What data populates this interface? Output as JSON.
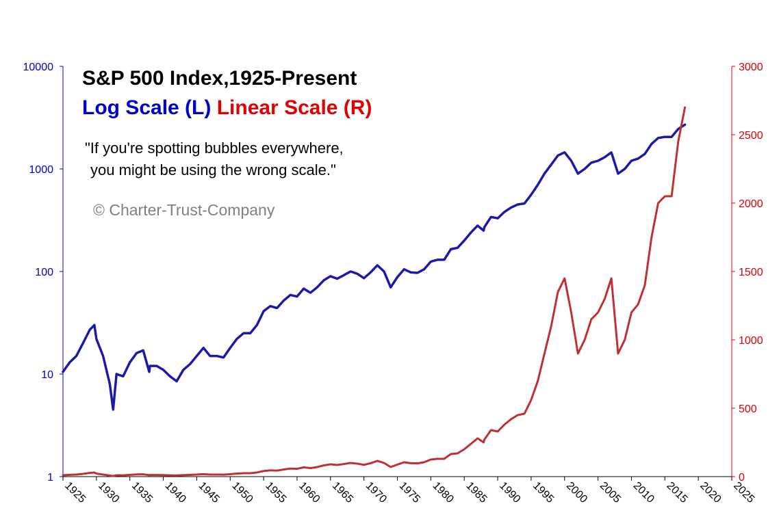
{
  "chart_data": {
    "type": "line",
    "title": "S&P 500 Index,1925-Present",
    "subtitle_left": "Log Scale (L)",
    "subtitle_right": "Linear Scale (R)",
    "quote_line1": "\"If you're spotting bubbles everywhere,",
    "quote_line2": "you might be using the wrong scale.\"",
    "credit": "© Charter-Trust-Company",
    "x_ticks": [
      "1925",
      "1930",
      "1935",
      "1940",
      "1945",
      "1950",
      "1955",
      "1960",
      "1965",
      "1970",
      "1975",
      "1980",
      "1985",
      "1990",
      "1995",
      "2000",
      "2005",
      "2010",
      "2015",
      "2020",
      "2025"
    ],
    "x_range": [
      1925,
      2025
    ],
    "y_left": {
      "scale": "log",
      "range": [
        1,
        10000
      ],
      "ticks": [
        "1",
        "10",
        "100",
        "1000",
        "10000"
      ],
      "color": "#0000cc"
    },
    "y_right": {
      "scale": "linear",
      "range": [
        0,
        3000
      ],
      "ticks": [
        "0",
        "500",
        "1000",
        "1500",
        "2000",
        "2500",
        "3000"
      ],
      "color": "#e00000"
    },
    "grid": false,
    "series": [
      {
        "name": "Log Scale (L)",
        "axis": "left",
        "color": "#1a1aaa",
        "x": [
          1925,
          1926,
          1927,
          1928,
          1929,
          1929.7,
          1930,
          1931,
          1932,
          1932.5,
          1933,
          1934,
          1935,
          1936,
          1937,
          1937.9,
          1938,
          1939,
          1940,
          1941,
          1942,
          1943,
          1944,
          1945,
          1946,
          1947,
          1948,
          1949,
          1950,
          1951,
          1952,
          1953,
          1954,
          1955,
          1956,
          1957,
          1958,
          1959,
          1960,
          1961,
          1962,
          1963,
          1964,
          1965,
          1966,
          1967,
          1968,
          1969,
          1970,
          1971,
          1972,
          1973,
          1974,
          1975,
          1976,
          1977,
          1978,
          1979,
          1980,
          1981,
          1982,
          1983,
          1984,
          1985,
          1986,
          1987,
          1987.9,
          1988,
          1989,
          1990,
          1991,
          1992,
          1993,
          1994,
          1995,
          1996,
          1997,
          1998,
          1999,
          2000,
          2001,
          2002,
          2003,
          2004,
          2005,
          2006,
          2007,
          2008,
          2009,
          2010,
          2011,
          2012,
          2013,
          2014,
          2015,
          2016,
          2017,
          2018
        ],
        "y": [
          10.5,
          13,
          15,
          20,
          27,
          30,
          22,
          15,
          8,
          4.5,
          10,
          9.5,
          13,
          16,
          17,
          10.5,
          12,
          12,
          11,
          9.5,
          8.5,
          11,
          12.5,
          15,
          18,
          15,
          15,
          14.5,
          18,
          22,
          25,
          25,
          30,
          41,
          46,
          44,
          52,
          59,
          57,
          68,
          62,
          70,
          82,
          90,
          85,
          92,
          100,
          95,
          86,
          98,
          115,
          100,
          70,
          88,
          105,
          98,
          97,
          105,
          125,
          130,
          130,
          165,
          170,
          200,
          240,
          280,
          250,
          270,
          340,
          330,
          380,
          420,
          450,
          460,
          560,
          700,
          900,
          1100,
          1350,
          1450,
          1200,
          900,
          1000,
          1150,
          1200,
          1300,
          1450,
          900,
          1000,
          1200,
          1260,
          1400,
          1750,
          2000,
          2050,
          2050,
          2450,
          2700
        ]
      },
      {
        "name": "Linear Scale (R)",
        "axis": "right",
        "color": "#c03030",
        "x": [
          1925,
          1926,
          1927,
          1928,
          1929,
          1929.7,
          1930,
          1931,
          1932,
          1932.5,
          1933,
          1934,
          1935,
          1936,
          1937,
          1937.9,
          1938,
          1939,
          1940,
          1941,
          1942,
          1943,
          1944,
          1945,
          1946,
          1947,
          1948,
          1949,
          1950,
          1951,
          1952,
          1953,
          1954,
          1955,
          1956,
          1957,
          1958,
          1959,
          1960,
          1961,
          1962,
          1963,
          1964,
          1965,
          1966,
          1967,
          1968,
          1969,
          1970,
          1971,
          1972,
          1973,
          1974,
          1975,
          1976,
          1977,
          1978,
          1979,
          1980,
          1981,
          1982,
          1983,
          1984,
          1985,
          1986,
          1987,
          1987.9,
          1988,
          1989,
          1990,
          1991,
          1992,
          1993,
          1994,
          1995,
          1996,
          1997,
          1998,
          1999,
          2000,
          2001,
          2002,
          2003,
          2004,
          2005,
          2006,
          2007,
          2008,
          2009,
          2010,
          2011,
          2012,
          2013,
          2014,
          2015,
          2016,
          2017,
          2018
        ],
        "y": [
          10.5,
          13,
          15,
          20,
          27,
          30,
          22,
          15,
          8,
          4.5,
          10,
          9.5,
          13,
          16,
          17,
          10.5,
          12,
          12,
          11,
          9.5,
          8.5,
          11,
          12.5,
          15,
          18,
          15,
          15,
          14.5,
          18,
          22,
          25,
          25,
          30,
          41,
          46,
          44,
          52,
          59,
          57,
          68,
          62,
          70,
          82,
          90,
          85,
          92,
          100,
          95,
          86,
          98,
          115,
          100,
          70,
          88,
          105,
          98,
          97,
          105,
          125,
          130,
          130,
          165,
          170,
          200,
          240,
          280,
          250,
          270,
          340,
          330,
          380,
          420,
          450,
          460,
          560,
          700,
          900,
          1100,
          1350,
          1450,
          1200,
          900,
          1000,
          1150,
          1200,
          1300,
          1450,
          900,
          1000,
          1200,
          1260,
          1400,
          1750,
          2000,
          2050,
          2050,
          2450,
          2700
        ]
      }
    ]
  }
}
